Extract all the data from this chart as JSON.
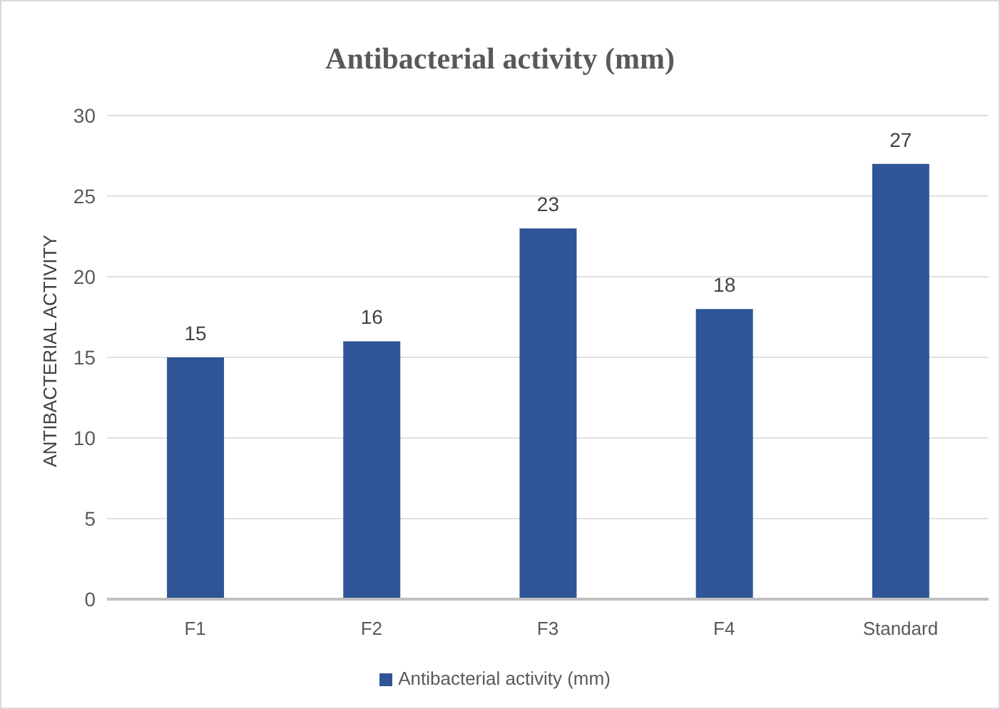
{
  "chart_data": {
    "type": "bar",
    "title": "Antibacterial activity (mm)",
    "ylabel": "ANTIBACTERIAL ACTIVITY",
    "categories": [
      "F1",
      "F2",
      "F3",
      "F4",
      "Standard"
    ],
    "series": [
      {
        "name": "Antibacterial activity (mm)",
        "color": "#2f5597",
        "values": [
          15,
          16,
          23,
          18,
          27
        ]
      }
    ],
    "ylim": [
      0,
      30
    ],
    "yticks": [
      0,
      5,
      10,
      15,
      20,
      25,
      30
    ],
    "grid": "y",
    "legend": "bottom",
    "data_labels": true
  }
}
